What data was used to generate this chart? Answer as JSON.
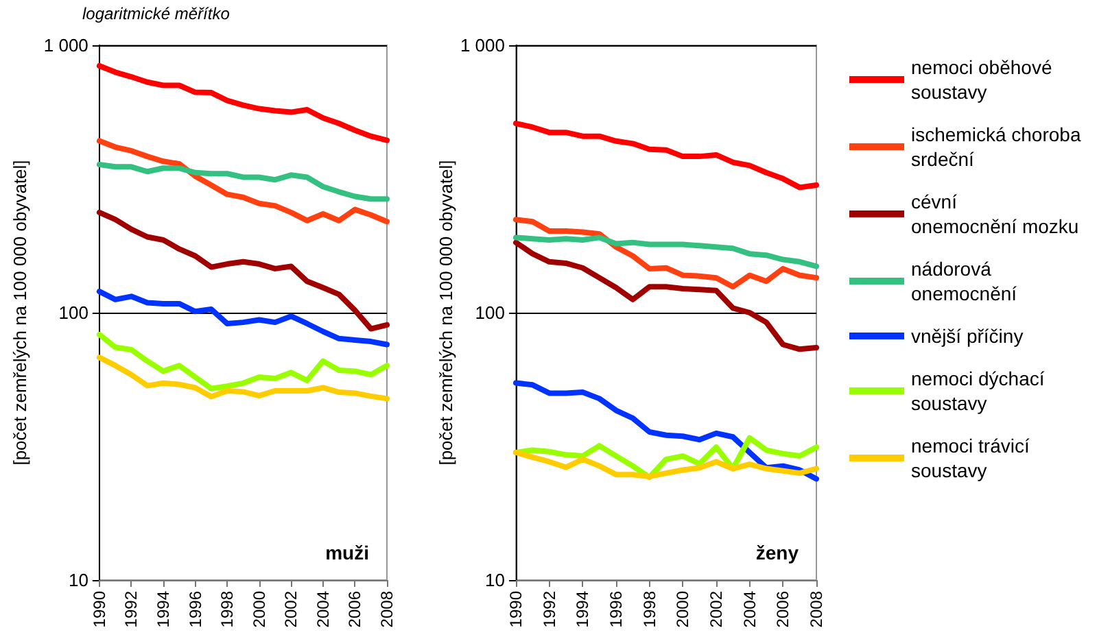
{
  "chart_data": [
    {
      "type": "line",
      "title": "muži",
      "annotations": [
        "logaritmické měřítko"
      ],
      "ylabel": "[počet zemřelých na 100 000 obyvatel]",
      "x": [
        1990,
        1991,
        1992,
        1993,
        1994,
        1995,
        1996,
        1997,
        1998,
        1999,
        2000,
        2001,
        2002,
        2003,
        2004,
        2005,
        2006,
        2007,
        2008
      ],
      "xlim": [
        1990,
        2008
      ],
      "xticks": [
        1990,
        1992,
        1994,
        1996,
        1998,
        2000,
        2002,
        2004,
        2006,
        2008
      ],
      "ylim": [
        10,
        1000
      ],
      "yticks": [
        {
          "value": 10,
          "label": "10"
        },
        {
          "value": 100,
          "label": "100"
        },
        {
          "value": 1000,
          "label": "1 000"
        }
      ],
      "log": true,
      "grid": "y",
      "legend": false,
      "marker": "none",
      "line_style": "solid",
      "series": [
        {
          "color": "#ff0000",
          "values": [
            838,
            793,
            762,
            728,
            708,
            708,
            667,
            665,
            621,
            597,
            579,
            569,
            562,
            574,
            535,
            510,
            481,
            457,
            441
          ]
        },
        {
          "color": "#ff4010",
          "values": [
            439,
            416,
            403,
            384,
            368,
            360,
            324,
            300,
            277,
            270,
            256,
            251,
            237,
            221,
            234,
            221,
            243,
            232,
            219
          ]
        },
        {
          "color": "#a00000",
          "values": [
            237,
            223,
            205,
            192,
            187,
            173,
            163,
            148,
            152,
            155,
            152,
            146,
            149,
            131,
            124,
            117,
            102,
            87,
            90
          ]
        },
        {
          "color": "#33c080",
          "values": [
            358,
            351,
            351,
            337,
            347,
            347,
            334,
            331,
            331,
            321,
            321,
            314,
            327,
            321,
            296,
            283,
            272,
            266,
            266
          ]
        },
        {
          "color": "#0033ff",
          "values": [
            120,
            112,
            115,
            109,
            108,
            108,
            101,
            103,
            91,
            92,
            94,
            92,
            97,
            91,
            85,
            80,
            79,
            78,
            76
          ]
        },
        {
          "color": "#99ff00",
          "values": [
            82.8,
            74.2,
            72.7,
            65.9,
            60.4,
            63.4,
            57.4,
            52,
            53.1,
            54.5,
            57.4,
            56.7,
            59.7,
            55.8,
            65.9,
            60.9,
            60.4,
            58.6,
            63.4
          ]
        },
        {
          "color": "#ffcc00",
          "values": [
            68,
            63.4,
            58.6,
            53.3,
            54.5,
            53.9,
            52.4,
            48.5,
            51,
            50.6,
            48.9,
            51,
            51,
            51,
            52.4,
            50.4,
            50,
            48.7,
            47.7
          ]
        }
      ]
    },
    {
      "type": "line",
      "title": "ženy",
      "ylabel": "[počet zemřelých na 100 000 obyvatel]",
      "x": [
        1990,
        1991,
        1992,
        1993,
        1994,
        1995,
        1996,
        1997,
        1998,
        1999,
        2000,
        2001,
        2002,
        2003,
        2004,
        2005,
        2006,
        2007,
        2008
      ],
      "xlim": [
        1990,
        2008
      ],
      "xticks": [
        1990,
        1992,
        1994,
        1996,
        1998,
        2000,
        2002,
        2004,
        2006,
        2008
      ],
      "ylim": [
        10,
        1000
      ],
      "yticks": [
        {
          "value": 10,
          "label": "10"
        },
        {
          "value": 100,
          "label": "100"
        },
        {
          "value": 1000,
          "label": "1 000"
        }
      ],
      "log": true,
      "grid": "y",
      "legend": "right",
      "marker": "none",
      "line_style": "solid",
      "series": [
        {
          "name": "nemoci oběhové soustavy",
          "color": "#ff0000",
          "values": [
            510,
            494,
            472,
            472,
            457,
            457,
            438,
            429,
            408,
            406,
            384,
            384,
            389,
            365,
            355,
            334,
            317,
            294,
            300
          ]
        },
        {
          "name": "ischemická choroba srdeční",
          "color": "#ff4010",
          "values": [
            223,
            219,
            202,
            202,
            200,
            197,
            176,
            163,
            146,
            147,
            138,
            137,
            135,
            125,
            138,
            131,
            146,
            138,
            135
          ]
        },
        {
          "name": "cévní onemocnění mozku",
          "color": "#a00000",
          "values": [
            183,
            166,
            155,
            153,
            147,
            135,
            124,
            112,
            125,
            125,
            123,
            122,
            121,
            104,
            100,
            92,
            76,
            73,
            74
          ]
        },
        {
          "name": "nádorová onemocnění",
          "color": "#33c080",
          "values": [
            191,
            189,
            187,
            189,
            187,
            191,
            181,
            183,
            180,
            180,
            180,
            178,
            176,
            174,
            166,
            164,
            158,
            155,
            149
          ]
        },
        {
          "name": "vnější příčiny",
          "color": "#0033ff",
          "values": [
            54.6,
            53.7,
            50,
            50,
            50.4,
            47.7,
            43.1,
            40.3,
            35.8,
            34.8,
            34.5,
            33.5,
            35.4,
            34.3,
            30,
            26.3,
            26.7,
            25.8,
            23.9
          ]
        },
        {
          "name": "nemoci dýchací soustavy",
          "color": "#99ff00",
          "values": [
            30,
            30.6,
            30.2,
            29.4,
            29.1,
            31.8,
            29.1,
            26.7,
            24.2,
            28.3,
            29.1,
            27.2,
            31.4,
            26.1,
            34,
            30.6,
            29.7,
            29.1,
            31.4
          ]
        },
        {
          "name": "nemoci trávicí soustavy",
          "color": "#ffcc00",
          "values": [
            30,
            28.8,
            27.7,
            26.4,
            28.3,
            26.7,
            24.8,
            24.8,
            24.4,
            25.1,
            25.8,
            26.3,
            27.7,
            26.1,
            27.1,
            26.1,
            25.6,
            25.1,
            26.1
          ]
        }
      ]
    }
  ]
}
